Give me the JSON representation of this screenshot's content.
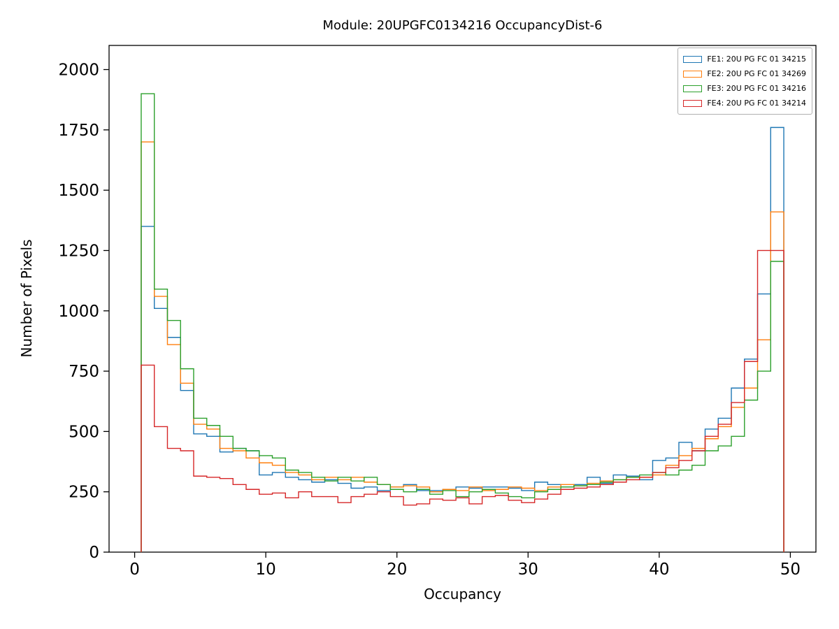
{
  "chart_data": {
    "type": "line",
    "subtype": "step-histogram",
    "title": "Module: 20UPGFC0134216 OccupancyDist-6",
    "xlabel": "Occupancy",
    "ylabel": "Number of Pixels",
    "xlim": [
      -1.95,
      51.95
    ],
    "ylim": [
      0,
      2100
    ],
    "xticks": [
      0,
      10,
      20,
      30,
      40,
      50
    ],
    "yticks": [
      0,
      250,
      500,
      750,
      1000,
      1250,
      1500,
      1750,
      2000
    ],
    "grid": false,
    "legend_position": "upper right",
    "bin_start": 0.5,
    "bin_width": 1,
    "series": [
      {
        "name": "FE1",
        "label": "FE1: 20U PG FC 01 34215",
        "color": "#1f77b4",
        "values": [
          1350,
          1010,
          890,
          670,
          490,
          480,
          415,
          430,
          420,
          320,
          330,
          310,
          300,
          290,
          300,
          285,
          265,
          270,
          255,
          270,
          280,
          255,
          255,
          260,
          270,
          265,
          270,
          270,
          265,
          255,
          290,
          280,
          270,
          280,
          310,
          285,
          320,
          315,
          300,
          380,
          390,
          455,
          420,
          510,
          555,
          680,
          800,
          1070,
          1760
        ]
      },
      {
        "name": "FE2",
        "label": "FE2: 20U PG FC 01 34269",
        "color": "#ff7f0e",
        "values": [
          1700,
          1060,
          860,
          700,
          530,
          510,
          430,
          420,
          390,
          370,
          360,
          330,
          320,
          300,
          310,
          300,
          310,
          290,
          280,
          270,
          275,
          270,
          250,
          260,
          255,
          270,
          255,
          260,
          270,
          265,
          255,
          270,
          280,
          275,
          285,
          295,
          300,
          310,
          310,
          320,
          360,
          400,
          430,
          470,
          520,
          600,
          680,
          880,
          1410
        ]
      },
      {
        "name": "FE3",
        "label": "FE3: 20U PG FC 01 34216",
        "color": "#2ca02c",
        "values": [
          1900,
          1090,
          960,
          760,
          555,
          525,
          480,
          430,
          420,
          400,
          390,
          340,
          330,
          310,
          295,
          310,
          295,
          310,
          280,
          260,
          250,
          260,
          240,
          255,
          230,
          250,
          260,
          245,
          230,
          225,
          250,
          260,
          270,
          275,
          280,
          290,
          300,
          310,
          320,
          330,
          320,
          340,
          360,
          420,
          440,
          480,
          630,
          750,
          1205
        ]
      },
      {
        "name": "FE4",
        "label": "FE4: 20U PG FC 01 34214",
        "color": "#d62728",
        "values": [
          775,
          520,
          430,
          420,
          315,
          310,
          305,
          280,
          260,
          240,
          245,
          225,
          250,
          230,
          230,
          205,
          230,
          240,
          250,
          230,
          195,
          200,
          220,
          215,
          225,
          200,
          230,
          235,
          215,
          205,
          220,
          240,
          260,
          265,
          270,
          280,
          290,
          300,
          310,
          330,
          350,
          380,
          420,
          480,
          530,
          620,
          790,
          1250,
          1250
        ]
      }
    ]
  }
}
